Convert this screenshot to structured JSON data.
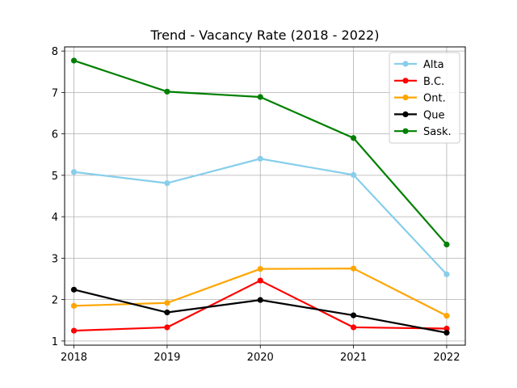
{
  "chart_data": {
    "type": "line",
    "title": "Trend - Vacancy Rate (2018 - 2022)",
    "xlabel": "",
    "ylabel": "",
    "x": [
      "2018",
      "2019",
      "2020",
      "2021",
      "2022"
    ],
    "xlim": [
      2017.9,
      2022.2
    ],
    "ylim": [
      0.9,
      8.1
    ],
    "yticks": [
      1,
      2,
      3,
      4,
      5,
      6,
      7,
      8
    ],
    "grid": true,
    "legend_position": "top-right",
    "series": [
      {
        "name": "Alta",
        "color": "#87ceeb",
        "values": [
          5.08,
          4.81,
          5.4,
          5.01,
          2.61
        ]
      },
      {
        "name": "B.C.",
        "color": "#ff0000",
        "values": [
          1.25,
          1.33,
          2.46,
          1.33,
          1.3
        ]
      },
      {
        "name": "Ont.",
        "color": "#ffa500",
        "values": [
          1.85,
          1.92,
          2.74,
          2.75,
          1.61
        ]
      },
      {
        "name": "Que",
        "color": "#000000",
        "values": [
          2.24,
          1.69,
          1.99,
          1.62,
          1.2
        ]
      },
      {
        "name": "Sask.",
        "color": "#008000",
        "values": [
          7.77,
          7.02,
          6.89,
          5.9,
          3.33
        ]
      }
    ]
  }
}
